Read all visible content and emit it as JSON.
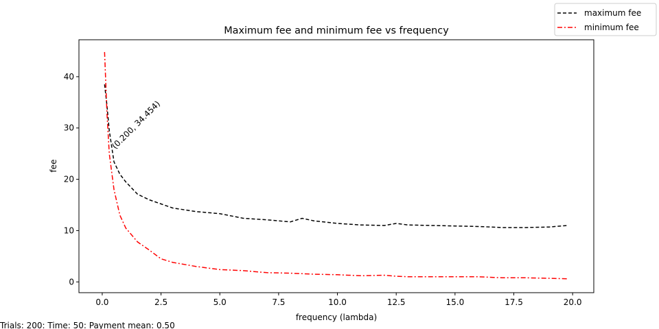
{
  "chart_data": {
    "type": "line",
    "title": "Maximum fee and minimum fee vs frequency",
    "x_label": "frequency (lambda)",
    "y_label": "fee",
    "annotation": "(0.200, 34.454)",
    "footer": "Trials: 200: Time: 50: Payment mean: 0.50",
    "legend": "upper right",
    "x": [
      0.1,
      0.2,
      0.3,
      0.5,
      0.75,
      1,
      1.5,
      2,
      2.5,
      3,
      4,
      5,
      6,
      7,
      8,
      8.5,
      9,
      10,
      11,
      12,
      12.5,
      13,
      14,
      15,
      16,
      17,
      18,
      19,
      19.8
    ],
    "series": [
      {
        "name": "maximum fee",
        "color": "#000000",
        "dash": "5,3",
        "values": [
          38.5,
          34.454,
          29.5,
          23.4,
          21.0,
          19.5,
          17.1,
          16.0,
          15.2,
          14.4,
          13.7,
          13.3,
          12.4,
          12.1,
          11.7,
          12.4,
          11.9,
          11.4,
          11.1,
          11.0,
          11.4,
          11.1,
          11.0,
          10.9,
          10.8,
          10.6,
          10.6,
          10.7,
          11.0
        ]
      },
      {
        "name": "minimum fee",
        "color": "#ff0000",
        "dash": "7,3,2,3",
        "values": [
          44.8,
          33.0,
          25.0,
          18.0,
          13.0,
          10.5,
          7.8,
          6.2,
          4.5,
          3.8,
          3.0,
          2.4,
          2.2,
          1.8,
          1.7,
          1.6,
          1.5,
          1.4,
          1.2,
          1.3,
          1.1,
          1.0,
          1.0,
          1.0,
          1.0,
          0.8,
          0.8,
          0.7,
          0.6
        ]
      }
    ],
    "xlim": [
      -0.99,
      20.9
    ],
    "ylim": [
      -2.1,
      47.2
    ],
    "xticks": [
      {
        "value": 0,
        "label": "0.0"
      },
      {
        "value": 2.5,
        "label": "2.5"
      },
      {
        "value": 5,
        "label": "5.0"
      },
      {
        "value": 7.5,
        "label": "7.5"
      },
      {
        "value": 10,
        "label": "10.0"
      },
      {
        "value": 12.5,
        "label": "12.5"
      },
      {
        "value": 15,
        "label": "15.0"
      },
      {
        "value": 17.5,
        "label": "17.5"
      },
      {
        "value": 20,
        "label": "20.0"
      }
    ],
    "yticks": [
      0,
      10,
      20,
      30,
      40
    ]
  }
}
